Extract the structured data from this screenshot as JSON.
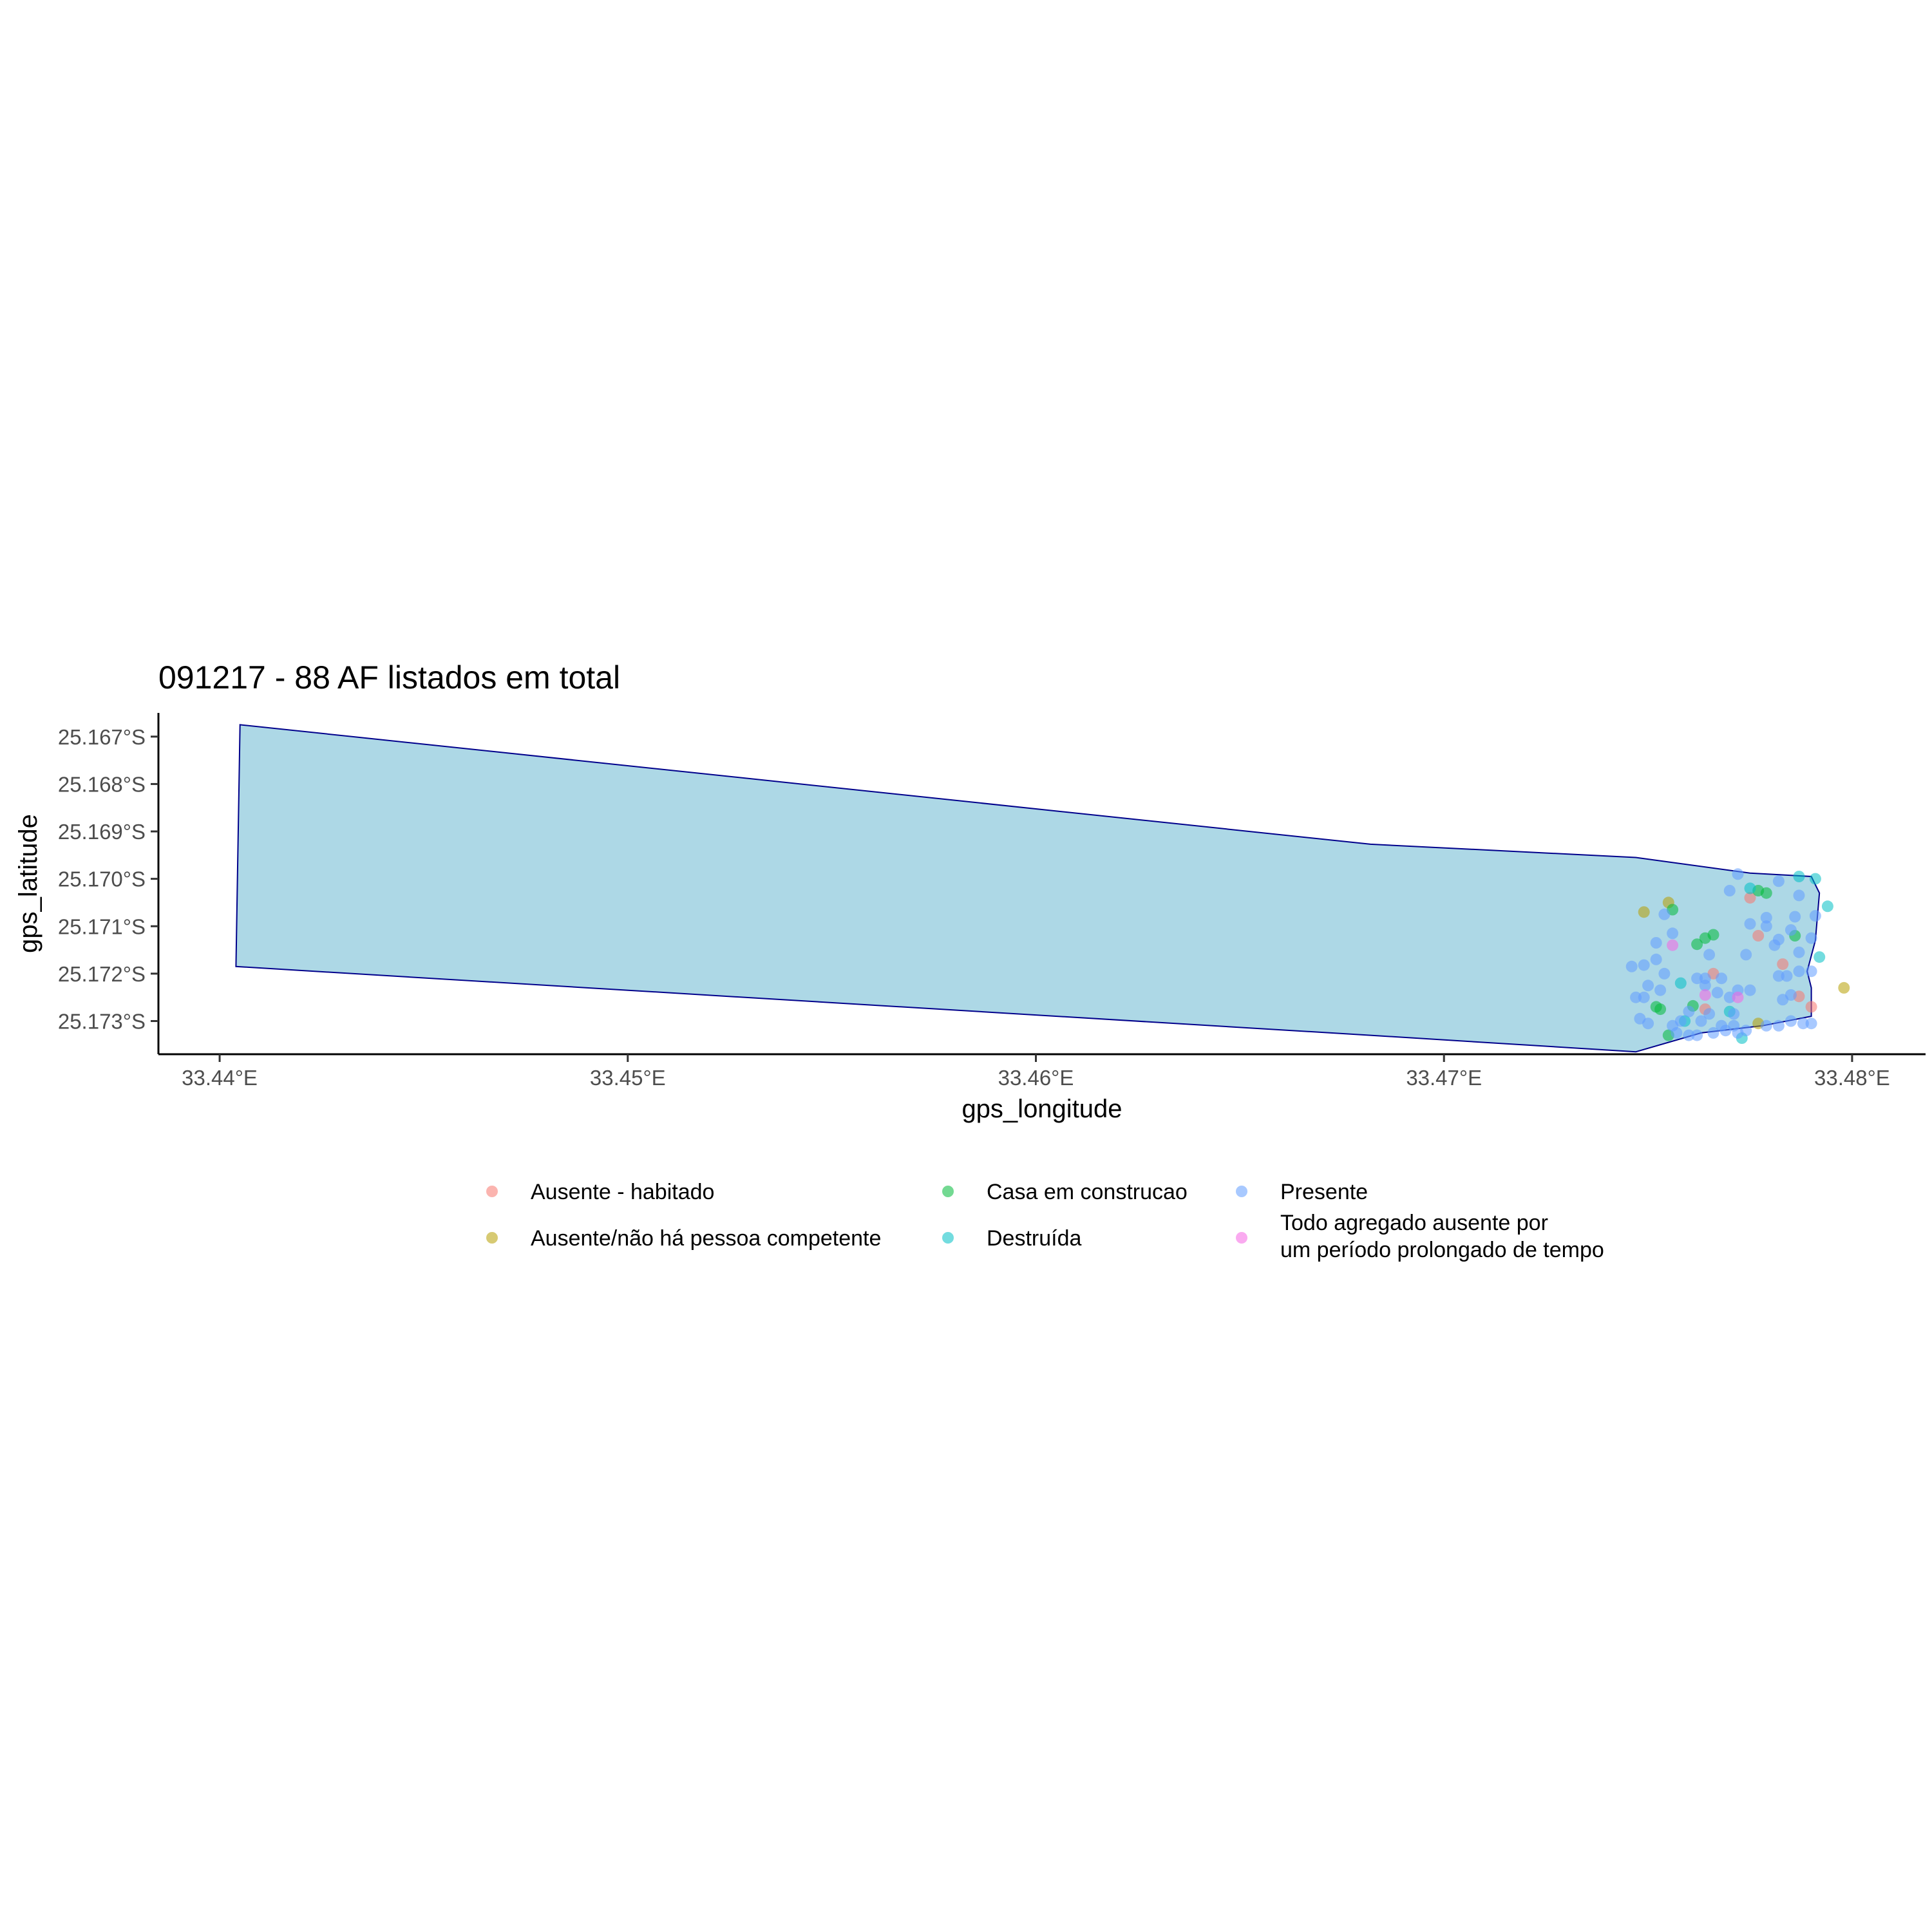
{
  "chart_data": {
    "type": "scatter",
    "title": "091217 - 88 AF listados em total",
    "xlabel": "gps_longitude",
    "ylabel": "gps_latitude",
    "xlim": [
      33.4385,
      33.4818
    ],
    "ylim": [
      -25.1737,
      -25.1665
    ],
    "x_ticks": [
      {
        "value": 33.44,
        "label": "33.44°E"
      },
      {
        "value": 33.45,
        "label": "33.45°E"
      },
      {
        "value": 33.46,
        "label": "33.46°E"
      },
      {
        "value": 33.47,
        "label": "33.47°E"
      },
      {
        "value": 33.48,
        "label": "33.48°E"
      }
    ],
    "y_ticks": [
      {
        "value": -25.167,
        "label": "25.167°S"
      },
      {
        "value": -25.168,
        "label": "25.168°S"
      },
      {
        "value": -25.169,
        "label": "25.169°S"
      },
      {
        "value": -25.17,
        "label": "25.170°S"
      },
      {
        "value": -25.171,
        "label": "25.171°S"
      },
      {
        "value": -25.172,
        "label": "25.172°S"
      },
      {
        "value": -25.173,
        "label": "25.173°S"
      }
    ],
    "grid": false,
    "legend_position": "bottom",
    "boundary": {
      "fill": "#add8e6",
      "stroke": "#00008b",
      "coords": [
        [
          33.4405,
          -25.16675
        ],
        [
          33.4682,
          -25.16927
        ],
        [
          33.4747,
          -25.16955
        ],
        [
          33.4775,
          -25.16988
        ],
        [
          33.479,
          -25.16995
        ],
        [
          33.4792,
          -25.1703
        ],
        [
          33.4791,
          -25.1713
        ],
        [
          33.4789,
          -25.17195
        ],
        [
          33.479,
          -25.1723
        ],
        [
          33.479,
          -25.1729
        ],
        [
          33.4778,
          -25.1731
        ],
        [
          33.4763,
          -25.17325
        ],
        [
          33.4747,
          -25.17365
        ],
        [
          33.4682,
          -25.1733
        ],
        [
          33.4404,
          -25.17185
        ]
      ]
    },
    "series": [
      {
        "name": "Ausente - habitado",
        "color": "#F8766D",
        "points": [
          [
            33.4775,
            -25.1704
          ],
          [
            33.4777,
            -25.1712
          ],
          [
            33.4766,
            -25.172
          ],
          [
            33.4783,
            -25.1718
          ],
          [
            33.4787,
            -25.17248
          ],
          [
            33.479,
            -25.1727
          ],
          [
            33.4764,
            -25.17275
          ]
        ]
      },
      {
        "name": "Ausente/não há pessoa competente",
        "color": "#B79F00",
        "points": [
          [
            33.4755,
            -25.1705
          ],
          [
            33.4749,
            -25.1707
          ],
          [
            33.4798,
            -25.1723
          ],
          [
            33.4777,
            -25.17305
          ]
        ]
      },
      {
        "name": "Casa em construcao",
        "color": "#00BA38",
        "points": [
          [
            33.4756,
            -25.17065
          ],
          [
            33.4766,
            -25.17118
          ],
          [
            33.4764,
            -25.17125
          ],
          [
            33.4762,
            -25.17138
          ],
          [
            33.4786,
            -25.1712
          ],
          [
            33.4777,
            -25.17025
          ],
          [
            33.4779,
            -25.1703
          ],
          [
            33.4761,
            -25.17268
          ],
          [
            33.4752,
            -25.1727
          ],
          [
            33.4753,
            -25.17275
          ],
          [
            33.4755,
            -25.1733
          ]
        ]
      },
      {
        "name": "Destruída",
        "color": "#00BFC4",
        "points": [
          [
            33.4787,
            -25.16995
          ],
          [
            33.4791,
            -25.17
          ],
          [
            33.4794,
            -25.17058
          ],
          [
            33.4775,
            -25.1702
          ],
          [
            33.4792,
            -25.17165
          ],
          [
            33.4758,
            -25.1722
          ],
          [
            33.4759,
            -25.173
          ],
          [
            33.4773,
            -25.17336
          ],
          [
            33.477,
            -25.1728
          ]
        ]
      },
      {
        "name": "Presente",
        "color": "#619CFF",
        "points": [
          [
            33.4772,
            -25.1699
          ],
          [
            33.4782,
            -25.17005
          ],
          [
            33.477,
            -25.17025
          ],
          [
            33.4787,
            -25.17035
          ],
          [
            33.4791,
            -25.17078
          ],
          [
            33.4779,
            -25.17082
          ],
          [
            33.4786,
            -25.1708
          ],
          [
            33.4775,
            -25.17095
          ],
          [
            33.4779,
            -25.171
          ],
          [
            33.4782,
            -25.17128
          ],
          [
            33.4785,
            -25.17108
          ],
          [
            33.479,
            -25.17125
          ],
          [
            33.4787,
            -25.17155
          ],
          [
            33.4774,
            -25.1716
          ],
          [
            33.4754,
            -25.17075
          ],
          [
            33.4756,
            -25.17115
          ],
          [
            33.4752,
            -25.17135
          ],
          [
            33.4746,
            -25.17185
          ],
          [
            33.4749,
            -25.17182
          ],
          [
            33.4752,
            -25.1717
          ],
          [
            33.4754,
            -25.172
          ],
          [
            33.475,
            -25.17225
          ],
          [
            33.4747,
            -25.1725
          ],
          [
            33.4749,
            -25.1725
          ],
          [
            33.4753,
            -25.17235
          ],
          [
            33.4762,
            -25.1721
          ],
          [
            33.4764,
            -25.1721
          ],
          [
            33.4768,
            -25.1721
          ],
          [
            33.4764,
            -25.17225
          ],
          [
            33.4767,
            -25.1724
          ],
          [
            33.477,
            -25.1725
          ],
          [
            33.4772,
            -25.17235
          ],
          [
            33.4775,
            -25.17235
          ],
          [
            33.4771,
            -25.17285
          ],
          [
            33.4765,
            -25.17285
          ],
          [
            33.476,
            -25.1728
          ],
          [
            33.4758,
            -25.173
          ],
          [
            33.4763,
            -25.173
          ],
          [
            33.4768,
            -25.1731
          ],
          [
            33.4771,
            -25.1731
          ],
          [
            33.4774,
            -25.1732
          ],
          [
            33.4748,
            -25.17295
          ],
          [
            33.475,
            -25.17305
          ],
          [
            33.4756,
            -25.1731
          ],
          [
            33.4757,
            -25.17325
          ],
          [
            33.476,
            -25.1733
          ],
          [
            33.4762,
            -25.1733
          ],
          [
            33.4766,
            -25.17325
          ],
          [
            33.4769,
            -25.1732
          ],
          [
            33.4772,
            -25.17325
          ],
          [
            33.4779,
            -25.1731
          ],
          [
            33.4782,
            -25.1731
          ],
          [
            33.4785,
            -25.173
          ],
          [
            33.4788,
            -25.17305
          ],
          [
            33.479,
            -25.17305
          ],
          [
            33.4783,
            -25.17255
          ],
          [
            33.4785,
            -25.17245
          ],
          [
            33.4787,
            -25.17195
          ],
          [
            33.479,
            -25.17195
          ],
          [
            33.4782,
            -25.17205
          ],
          [
            33.4784,
            -25.17205
          ],
          [
            33.4765,
            -25.1716
          ],
          [
            33.4781,
            -25.1714
          ]
        ]
      },
      {
        "name": "Todo agregado ausente por um período prolongado de tempo",
        "color": "#F564E3",
        "points": [
          [
            33.4756,
            -25.1714
          ],
          [
            33.4764,
            -25.17245
          ],
          [
            33.4772,
            -25.1725
          ]
        ]
      }
    ],
    "legend": [
      {
        "label": "Ausente - habitado",
        "color": "#F8766D"
      },
      {
        "label": "Ausente/não há pessoa competente",
        "color": "#B79F00"
      },
      {
        "label": "Casa em construcao",
        "color": "#00BA38"
      },
      {
        "label": "Destruída",
        "color": "#00BFC4"
      },
      {
        "label": "Presente",
        "color": "#619CFF"
      },
      {
        "label_lines": [
          "Todo agregado ausente por",
          "um período prolongado de tempo"
        ],
        "color": "#F564E3"
      }
    ]
  }
}
